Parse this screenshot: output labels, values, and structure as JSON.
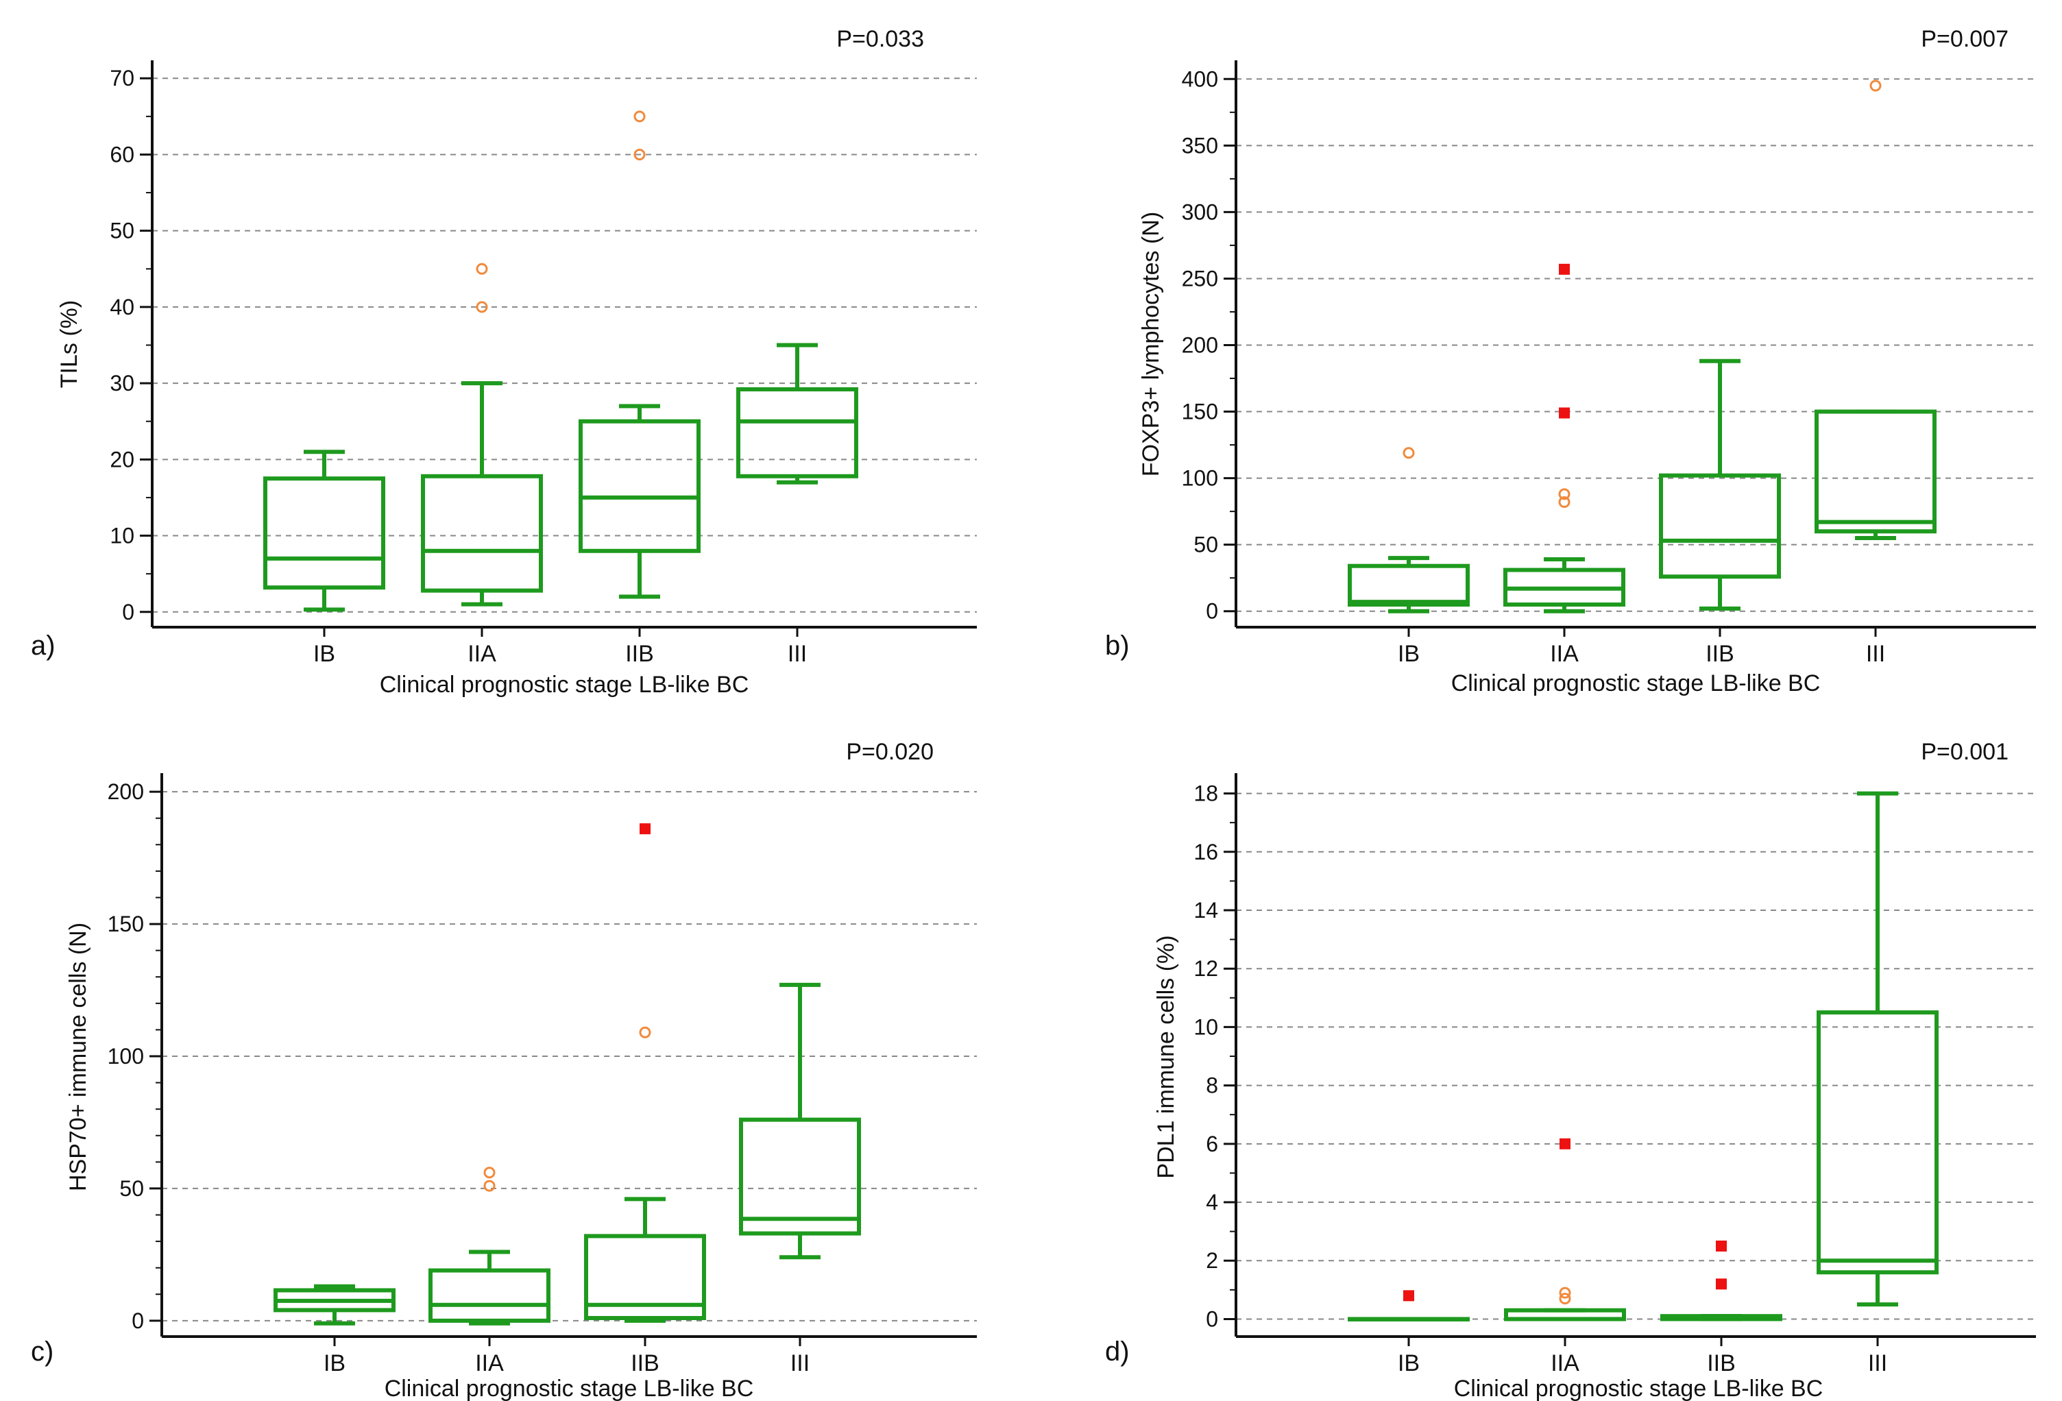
{
  "chart_data": [
    {
      "panel": "a)",
      "type": "box",
      "pvalue": "P=0.033",
      "xlabel": "Clinical prognostic stage LB-like BC",
      "ylabel": "TILs (%)",
      "ylim": [
        -2,
        72
      ],
      "yticks": [
        0,
        10,
        20,
        30,
        40,
        50,
        60,
        70
      ],
      "minor_step": 5,
      "tick_labels": [
        "0",
        "10",
        "20",
        "30",
        "40",
        "50",
        "60",
        "70"
      ],
      "categories": [
        "IB",
        "IIA",
        "IIB",
        "III"
      ],
      "boxes": [
        {
          "whisker_low": 0.3,
          "q1": 3.2,
          "median": 7,
          "q3": 17.5,
          "whisker_high": 21
        },
        {
          "whisker_low": 1,
          "q1": 2.8,
          "median": 8,
          "q3": 17.8,
          "whisker_high": 30
        },
        {
          "whisker_low": 2,
          "q1": 8,
          "median": 15,
          "q3": 25,
          "whisker_high": 27
        },
        {
          "whisker_low": 17,
          "q1": 17.8,
          "median": 25,
          "q3": 29.2,
          "whisker_high": 35
        }
      ],
      "outliers": [
        {
          "category": "IIA",
          "value": 45,
          "kind": "open"
        },
        {
          "category": "IIA",
          "value": 40,
          "kind": "open"
        },
        {
          "category": "IIB",
          "value": 65,
          "kind": "open"
        },
        {
          "category": "IIB",
          "value": 60,
          "kind": "open"
        }
      ]
    },
    {
      "panel": "b)",
      "type": "box",
      "pvalue": "P=0.007",
      "xlabel": "Clinical prognostic stage LB-like BC",
      "ylabel": "FOXP3+ lymphocytes (N)",
      "ylim": [
        -12,
        412
      ],
      "yticks": [
        0,
        50,
        100,
        150,
        200,
        250,
        300,
        350,
        400
      ],
      "minor_step": 25,
      "tick_labels": [
        "0",
        "50",
        "100",
        "150",
        "200",
        "250",
        "300",
        "350",
        "400"
      ],
      "categories": [
        "IB",
        "IIA",
        "IIB",
        "III"
      ],
      "boxes": [
        {
          "whisker_low": 0,
          "q1": 5,
          "median": 7,
          "q3": 34,
          "whisker_high": 40
        },
        {
          "whisker_low": 0,
          "q1": 5,
          "median": 17,
          "q3": 31,
          "whisker_high": 39
        },
        {
          "whisker_low": 2,
          "q1": 26,
          "median": 53,
          "q3": 102,
          "whisker_high": 188
        },
        {
          "whisker_low": 55,
          "q1": 60,
          "median": 67,
          "q3": 150,
          "whisker_high": 150
        }
      ],
      "outliers": [
        {
          "category": "IB",
          "value": 119,
          "kind": "open"
        },
        {
          "category": "IIA",
          "value": 257,
          "kind": "filled"
        },
        {
          "category": "IIA",
          "value": 149,
          "kind": "filled"
        },
        {
          "category": "IIA",
          "value": 88,
          "kind": "open"
        },
        {
          "category": "IIA",
          "value": 82,
          "kind": "open"
        },
        {
          "category": "III",
          "value": 395,
          "kind": "open"
        }
      ]
    },
    {
      "panel": "c)",
      "type": "box",
      "pvalue": "P=0.020",
      "xlabel": "Clinical prognostic stage LB-like BC",
      "ylabel": "HSP70+ immune cells (N)",
      "ylim": [
        -6,
        206
      ],
      "yticks": [
        0,
        50,
        100,
        150,
        200
      ],
      "minor_step": 10,
      "tick_labels": [
        "0",
        "50",
        "100",
        "150",
        "200"
      ],
      "categories": [
        "IB",
        "IIA",
        "IIB",
        "III"
      ],
      "boxes": [
        {
          "whisker_low": -1,
          "q1": 4,
          "median": 7.5,
          "q3": 11.5,
          "whisker_high": 13
        },
        {
          "whisker_low": -1,
          "q1": 0,
          "median": 6,
          "q3": 19,
          "whisker_high": 26
        },
        {
          "whisker_low": 0,
          "q1": 1,
          "median": 6,
          "q3": 32,
          "whisker_high": 46
        },
        {
          "whisker_low": 24,
          "q1": 33,
          "median": 38.5,
          "q3": 76,
          "whisker_high": 127
        }
      ],
      "outliers": [
        {
          "category": "IIA",
          "value": 56,
          "kind": "open"
        },
        {
          "category": "IIA",
          "value": 51,
          "kind": "open"
        },
        {
          "category": "IIB",
          "value": 186,
          "kind": "filled"
        },
        {
          "category": "IIB",
          "value": 109,
          "kind": "open"
        }
      ]
    },
    {
      "panel": "d)",
      "type": "box",
      "pvalue": "P=0.001",
      "xlabel": "Clinical prognostic stage LB-like BC",
      "ylabel": "PDL1 immune cells (%)",
      "ylim": [
        -0.6,
        18.6
      ],
      "yticks": [
        0,
        2,
        4,
        6,
        8,
        10,
        12,
        14,
        16,
        18
      ],
      "minor_step": 1,
      "tick_labels": [
        "0",
        "2",
        "4",
        "6",
        "8",
        "10",
        "12",
        "14",
        "16",
        "18"
      ],
      "categories": [
        "IB",
        "IIA",
        "IIB",
        "III"
      ],
      "boxes": [
        {
          "whisker_low": 0,
          "q1": 0,
          "median": 0,
          "q3": 0,
          "whisker_high": 0
        },
        {
          "whisker_low": 0,
          "q1": 0,
          "median": 0,
          "q3": 0.3,
          "whisker_high": 0.3
        },
        {
          "whisker_low": 0,
          "q1": 0,
          "median": 0.05,
          "q3": 0.1,
          "whisker_high": 0.1
        },
        {
          "whisker_low": 0.5,
          "q1": 1.6,
          "median": 2,
          "q3": 10.5,
          "whisker_high": 18
        }
      ],
      "outliers": [
        {
          "category": "IB",
          "value": 0.8,
          "kind": "filled"
        },
        {
          "category": "IIA",
          "value": 6,
          "kind": "filled"
        },
        {
          "category": "IIA",
          "value": 0.9,
          "kind": "open"
        },
        {
          "category": "IIA",
          "value": 0.7,
          "kind": "open"
        },
        {
          "category": "IIB",
          "value": 2.5,
          "kind": "filled"
        },
        {
          "category": "IIB",
          "value": 1.2,
          "kind": "filled"
        }
      ]
    }
  ],
  "colors": {
    "box": "#1e9a1e",
    "open_outlier": "#f08a3c",
    "filled_outlier": "#ee1111",
    "grid": "#888888",
    "axis": "#111111"
  }
}
